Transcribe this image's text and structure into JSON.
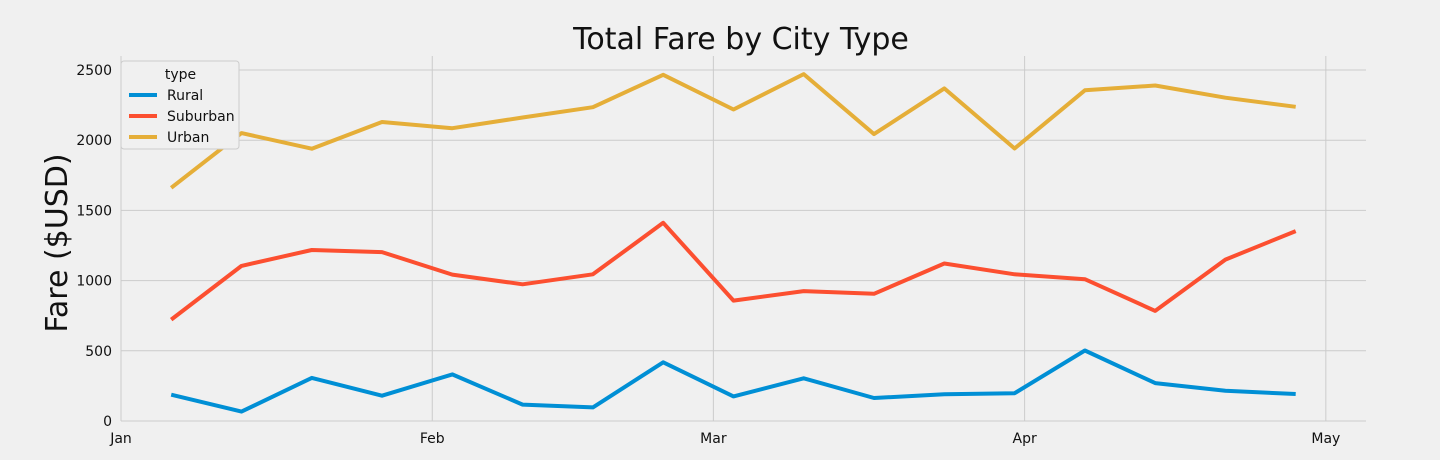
{
  "chart_data": {
    "type": "line",
    "title": "Total Fare by City Type",
    "xlabel": "",
    "ylabel": "Fare ($USD)",
    "legend_title": "type",
    "legend_placement": "upper-left",
    "grid": true,
    "xlim": [
      "2019-01-01",
      "2019-05-05"
    ],
    "x_ticks": [
      {
        "date": "2019-01-01",
        "label": "Jan"
      },
      {
        "date": "2019-02-01",
        "label": "Feb"
      },
      {
        "date": "2019-03-01",
        "label": "Mar"
      },
      {
        "date": "2019-04-01",
        "label": "Apr"
      },
      {
        "date": "2019-05-01",
        "label": "May"
      }
    ],
    "ylim": [
      0,
      2600
    ],
    "y_ticks": [
      0,
      500,
      1000,
      1500,
      2000,
      2500
    ],
    "x": [
      "2019-01-06",
      "2019-01-13",
      "2019-01-20",
      "2019-01-27",
      "2019-02-03",
      "2019-02-10",
      "2019-02-17",
      "2019-02-24",
      "2019-03-03",
      "2019-03-10",
      "2019-03-17",
      "2019-03-24",
      "2019-03-31",
      "2019-04-07",
      "2019-04-14",
      "2019-04-21",
      "2019-04-28"
    ],
    "series": [
      {
        "name": "Rural",
        "color": "#008fd5",
        "values": [
          187,
          67,
          307,
          180,
          332,
          117,
          97,
          418,
          175,
          304,
          164,
          190,
          198,
          502,
          270,
          215,
          192
        ]
      },
      {
        "name": "Suburban",
        "color": "#fc4f30",
        "values": [
          722,
          1105,
          1218,
          1203,
          1043,
          974,
          1045,
          1412,
          858,
          925,
          906,
          1122,
          1045,
          1010,
          784,
          1150,
          1353
        ]
      },
      {
        "name": "Urban",
        "color": "#e5ae38",
        "values": [
          1661,
          2051,
          1940,
          2130,
          2086,
          2162,
          2235,
          2466,
          2219,
          2471,
          2044,
          2369,
          1941,
          2356,
          2390,
          2303,
          2238
        ]
      }
    ]
  }
}
